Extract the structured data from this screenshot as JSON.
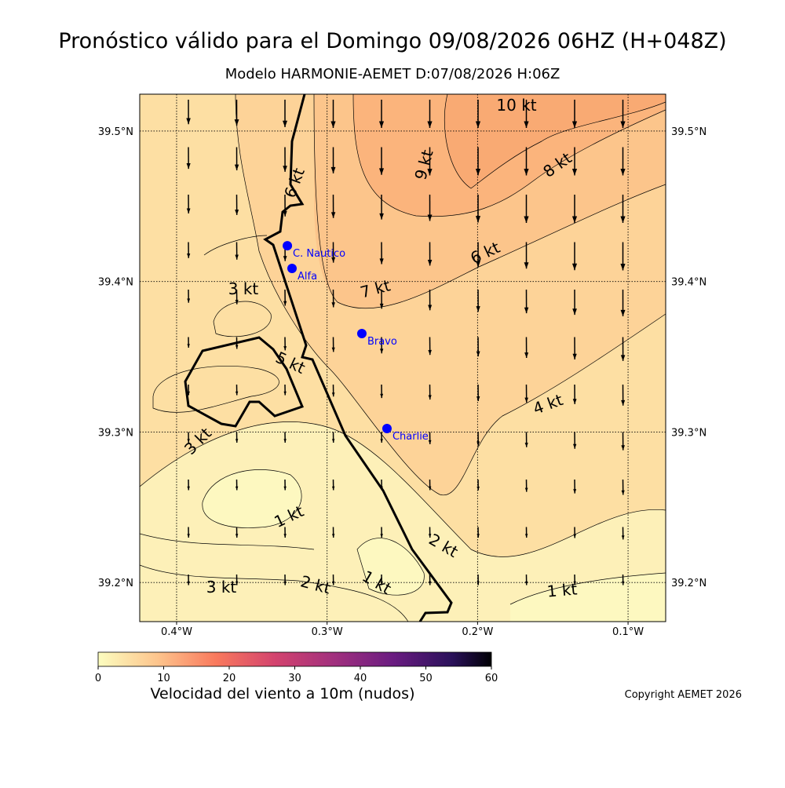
{
  "title": "Pronóstico válido para el Domingo 09/08/2026 06HZ (H+048Z)",
  "subtitle": "Modelo HARMONIE-AEMET D:07/08/2026 H:06Z",
  "map": {
    "xlim": [
      -0.4245,
      -0.075
    ],
    "ylim": [
      39.174,
      39.5245
    ],
    "xticks": [
      {
        "value": -0.4,
        "label": "0.4°W"
      },
      {
        "value": -0.3,
        "label": "0.3°W"
      },
      {
        "value": -0.2,
        "label": "0.2°W"
      },
      {
        "value": -0.1,
        "label": "0.1°W"
      }
    ],
    "yticks": [
      {
        "value": 39.2,
        "label": "39.2°N"
      },
      {
        "value": 39.3,
        "label": "39.3°N"
      },
      {
        "value": 39.4,
        "label": "39.4°N"
      },
      {
        "value": 39.5,
        "label": "39.5°N"
      }
    ],
    "grid": true,
    "contour_labels": [
      "10 kt",
      "9 kt",
      "8 kt",
      "6 kt",
      "6 kt",
      "7 kt",
      "3 kt",
      "5 kt",
      "4 kt",
      "3 kt",
      "1 kt",
      "2 kt",
      "1 kt",
      "3 kt",
      "2 kt",
      "1 kt"
    ],
    "stations": [
      {
        "name": "C. Nautico",
        "lon": -0.3264,
        "lat": 39.4238
      },
      {
        "name": "Alfa",
        "lon": -0.3233,
        "lat": 39.4087
      },
      {
        "name": "Bravo",
        "lon": -0.2769,
        "lat": 39.3654
      },
      {
        "name": "Charlie",
        "lon": -0.2602,
        "lat": 39.3023
      }
    ],
    "station_color": "#0000ff"
  },
  "colorbar": {
    "label": "Velocidad del viento a 10m (nudos)",
    "lim": [
      0,
      60
    ],
    "ticks": [
      0,
      10,
      20,
      30,
      40,
      50,
      60
    ]
  },
  "copyright": "Copyright AEMET 2026"
}
